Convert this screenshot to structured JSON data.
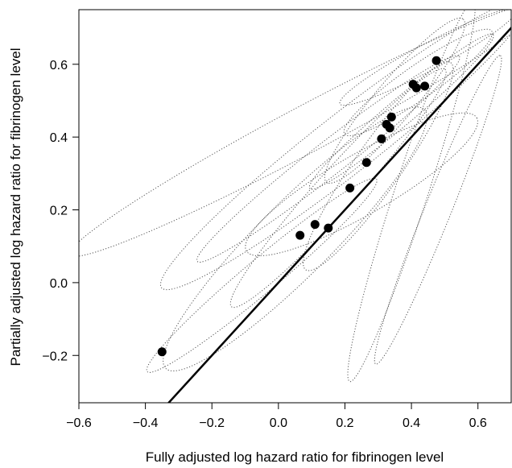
{
  "chart_data": {
    "type": "scatter",
    "title": "",
    "xlabel": "Fully adjusted log hazard ratio for fibrinogen level",
    "ylabel": "Partially adjusted log hazard ratio for fibrinogen level",
    "xlim": [
      -0.6,
      0.7
    ],
    "ylim": [
      -0.33,
      0.75
    ],
    "xticks": [
      -0.6,
      -0.4,
      -0.2,
      0.0,
      0.2,
      0.4,
      0.6
    ],
    "yticks": [
      -0.2,
      0.0,
      0.2,
      0.4,
      0.6
    ],
    "xtick_labels": [
      "−0.6",
      "−0.4",
      "−0.2",
      "0.0",
      "0.2",
      "0.4",
      "0.6"
    ],
    "ytick_labels": [
      "−0.2",
      "0.0",
      "0.2",
      "0.4",
      "0.6"
    ],
    "grid": false,
    "points": [
      {
        "x": -0.35,
        "y": -0.19
      },
      {
        "x": 0.065,
        "y": 0.13
      },
      {
        "x": 0.11,
        "y": 0.16
      },
      {
        "x": 0.15,
        "y": 0.15
      },
      {
        "x": 0.215,
        "y": 0.26
      },
      {
        "x": 0.265,
        "y": 0.33
      },
      {
        "x": 0.31,
        "y": 0.395
      },
      {
        "x": 0.325,
        "y": 0.435
      },
      {
        "x": 0.335,
        "y": 0.425
      },
      {
        "x": 0.34,
        "y": 0.455
      },
      {
        "x": 0.405,
        "y": 0.545
      },
      {
        "x": 0.415,
        "y": 0.535
      },
      {
        "x": 0.44,
        "y": 0.54
      },
      {
        "x": 0.475,
        "y": 0.61
      }
    ],
    "reference_line": {
      "slope": 1,
      "intercept": 0,
      "style": "solid"
    },
    "ellipses": [
      {
        "cx": 0.2,
        "cy": 0.38,
        "rx": 0.7,
        "ry": 0.09,
        "angle_deg": 38
      },
      {
        "cx": 0.18,
        "cy": 0.26,
        "rx": 0.48,
        "ry": 0.06,
        "angle_deg": 48
      },
      {
        "cx": 0.3,
        "cy": 0.32,
        "rx": 0.38,
        "ry": 0.07,
        "angle_deg": 55
      },
      {
        "cx": 0.05,
        "cy": 0.12,
        "rx": 0.55,
        "ry": 0.11,
        "angle_deg": 45
      },
      {
        "cx": 0.37,
        "cy": 0.47,
        "rx": 0.36,
        "ry": 0.04,
        "angle_deg": 40
      },
      {
        "cx": 0.42,
        "cy": 0.55,
        "rx": 0.27,
        "ry": 0.05,
        "angle_deg": 35
      },
      {
        "cx": 0.45,
        "cy": 0.62,
        "rx": 0.3,
        "ry": 0.04,
        "angle_deg": 28
      },
      {
        "cx": 0.35,
        "cy": 0.5,
        "rx": 0.32,
        "ry": 0.06,
        "angle_deg": 50
      },
      {
        "cx": 0.25,
        "cy": 0.27,
        "rx": 0.4,
        "ry": 0.09,
        "angle_deg": 30
      },
      {
        "cx": 0.4,
        "cy": 0.25,
        "rx": 0.6,
        "ry": 0.05,
        "angle_deg": 72
      },
      {
        "cx": 0.48,
        "cy": 0.2,
        "rx": 0.5,
        "ry": 0.04,
        "angle_deg": 68
      },
      {
        "cx": 0.08,
        "cy": 0.42,
        "rx": 0.8,
        "ry": 0.07,
        "angle_deg": 28
      },
      {
        "cx": 0.15,
        "cy": 0.34,
        "rx": 0.5,
        "ry": 0.05,
        "angle_deg": 38
      },
      {
        "cx": -0.05,
        "cy": 0.02,
        "rx": 0.45,
        "ry": 0.05,
        "angle_deg": 40
      }
    ]
  }
}
